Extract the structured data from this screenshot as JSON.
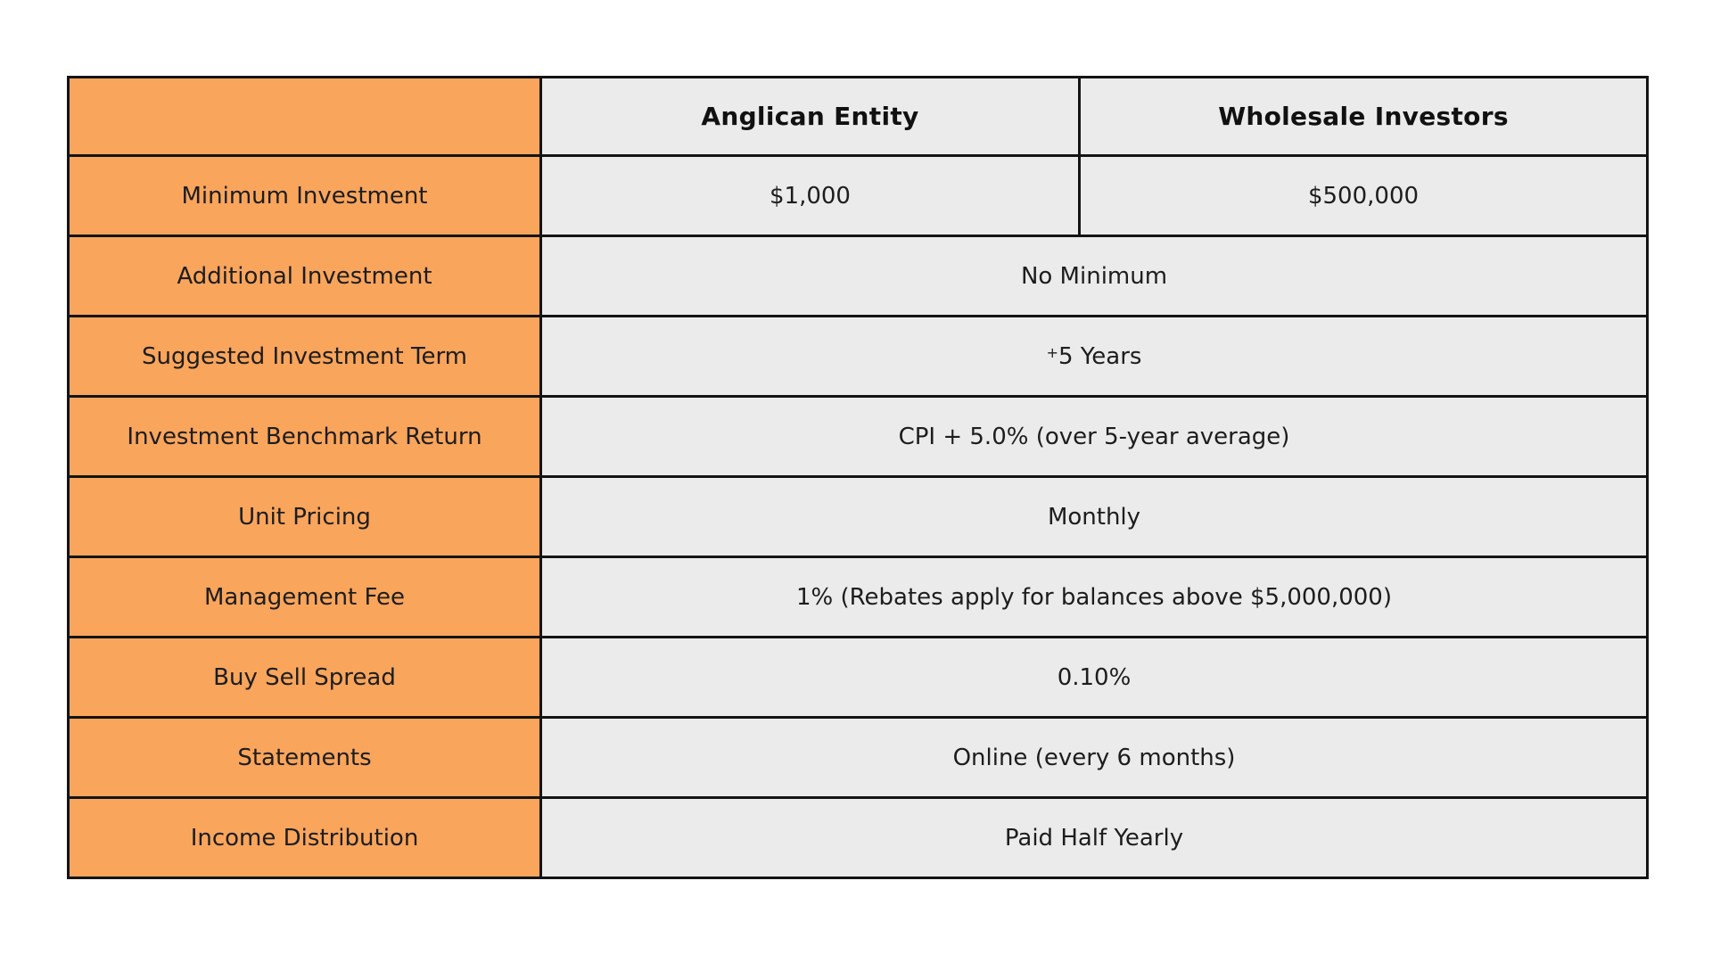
{
  "page": {
    "background": "#ffffff"
  },
  "table": {
    "colors": {
      "label_column_orange": "#F9A55C",
      "value_cell_gray": "#EBEBEB",
      "border_black": "#141414",
      "text_dark": "#1d1d1d"
    },
    "header": {
      "corner_label": "",
      "columns": [
        "Anglican Entity",
        "Wholesale Investors"
      ]
    },
    "rows": [
      {
        "label": "Minimum Investment",
        "values": [
          {
            "text": "$1,000",
            "span": 1
          },
          {
            "text": "$500,000",
            "span": 1
          }
        ]
      },
      {
        "label": "Additional Investment",
        "values": [
          {
            "text": "No Minimum",
            "span": 2
          }
        ]
      },
      {
        "label": "Suggested Investment Term",
        "values": [
          {
            "sup": "+",
            "text": "5 Years",
            "span": 2
          }
        ]
      },
      {
        "label": "Investment Benchmark Return",
        "values": [
          {
            "text": "CPI + 5.0% (over 5-year average)",
            "span": 2
          }
        ]
      },
      {
        "label": "Unit Pricing",
        "values": [
          {
            "text": "Monthly",
            "span": 2
          }
        ]
      },
      {
        "label": "Management Fee",
        "values": [
          {
            "text": "1% (Rebates apply for balances above $5,000,000)",
            "span": 2
          }
        ]
      },
      {
        "label": "Buy Sell Spread",
        "values": [
          {
            "text": "0.10%",
            "span": 2
          }
        ]
      },
      {
        "label": "Statements",
        "values": [
          {
            "text": "Online (every 6 months)",
            "span": 2
          }
        ]
      },
      {
        "label": "Income Distribution",
        "values": [
          {
            "text": "Paid Half Yearly",
            "span": 2
          }
        ]
      }
    ]
  }
}
